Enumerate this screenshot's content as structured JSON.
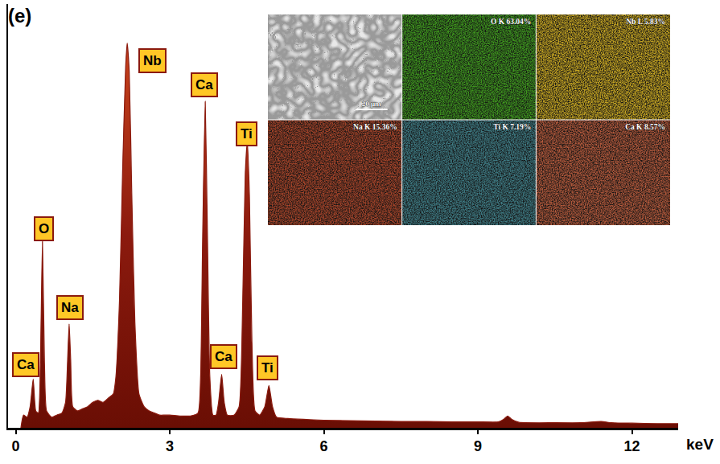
{
  "panel_label": "(e)",
  "chart_data": {
    "type": "area",
    "xlabel": "keV",
    "color": "#8b1a0e",
    "x": [
      0.1,
      0.15,
      0.22,
      0.28,
      0.34,
      0.39,
      0.44,
      0.48,
      0.52,
      0.56,
      0.6,
      0.7,
      0.8,
      0.9,
      0.97,
      1.01,
      1.04,
      1.07,
      1.11,
      1.2,
      1.3,
      1.4,
      1.5,
      1.6,
      1.7,
      1.8,
      1.9,
      1.95,
      2.02,
      2.08,
      2.14,
      2.17,
      2.21,
      2.26,
      2.32,
      2.4,
      2.5,
      2.6,
      2.7,
      2.8,
      2.9,
      3.0,
      3.2,
      3.4,
      3.55,
      3.6,
      3.64,
      3.69,
      3.73,
      3.78,
      3.84,
      3.9,
      3.95,
      4.01,
      4.06,
      4.12,
      4.25,
      4.35,
      4.42,
      4.47,
      4.51,
      4.55,
      4.6,
      4.66,
      4.75,
      4.85,
      4.93,
      5.0,
      5.08,
      5.3,
      5.6,
      6.0,
      6.5,
      7.0,
      7.5,
      8.0,
      8.5,
      9.0,
      9.4,
      9.5,
      9.58,
      9.66,
      9.8,
      10.5,
      11.0,
      11.4,
      11.6,
      12.0,
      12.5,
      12.9
    ],
    "values": [
      0,
      3,
      2.5,
      5,
      11.5,
      4,
      3.5,
      15,
      44,
      15,
      4,
      2.5,
      3,
      3.5,
      6,
      16,
      24.5,
      16,
      5,
      4,
      4.5,
      5,
      6,
      6.5,
      6,
      7,
      8,
      12,
      30,
      60,
      85,
      90.8,
      84,
      55,
      25,
      8,
      5,
      4,
      3.5,
      3,
      3,
      3,
      2.8,
      2.8,
      3.5,
      12,
      45,
      77,
      48,
      12,
      3,
      3,
      6,
      12.6,
      6,
      3,
      3,
      5,
      30,
      60,
      67.5,
      55,
      20,
      4,
      3,
      5,
      10,
      5,
      2.5,
      2.2,
      2,
      1.8,
      1.7,
      1.6,
      1.5,
      1.5,
      1.4,
      1.4,
      1.4,
      2,
      2.8,
      2,
      1.3,
      1.2,
      1.2,
      1.5,
      1.2,
      1.1,
      1,
      1
    ],
    "xlim": [
      -0.15,
      12.9
    ],
    "xticks": [
      0,
      3,
      6,
      9,
      12
    ],
    "ylim": [
      0,
      100
    ],
    "tick_labels": "x",
    "annotations": [
      {
        "text": "Ca",
        "x": 0.2,
        "y": 14.9
      },
      {
        "text": "O",
        "x": 0.55,
        "y": 47
      },
      {
        "text": "Na",
        "x": 1.06,
        "y": 28.3
      },
      {
        "text": "Nb",
        "x": 2.66,
        "y": 86.6
      },
      {
        "text": "Ca",
        "x": 3.68,
        "y": 80.9
      },
      {
        "text": "Ti",
        "x": 4.49,
        "y": 69.4
      },
      {
        "text": "Ca",
        "x": 4.05,
        "y": 16.8
      },
      {
        "text": "Ti",
        "x": 4.91,
        "y": 14.1
      }
    ]
  },
  "inset": {
    "scale_bar": "20 μm",
    "maps": [
      {
        "label": "O K 63.04%",
        "color": "#3f9a1f"
      },
      {
        "label": "Nb L 5.83%",
        "color": "#c9a822"
      },
      {
        "label": "Na K 15.36%",
        "color": "#a8452a"
      },
      {
        "label": "Ti K 7.19%",
        "color": "#3f7d86"
      },
      {
        "label": "Ca K 8.57%",
        "color": "#b55a3c"
      }
    ]
  }
}
